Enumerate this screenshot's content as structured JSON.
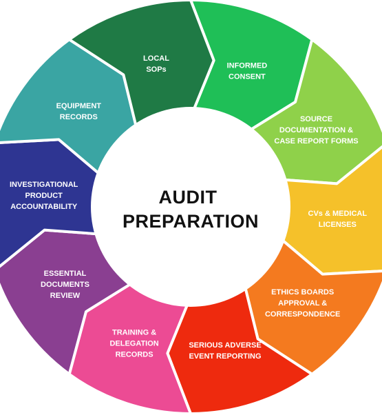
{
  "title": {
    "lines": [
      "AUDIT",
      "PREPARATION"
    ]
  },
  "segments": [
    {
      "id": "informed-consent",
      "lines": [
        "INFORMED",
        "CONSENT"
      ],
      "color": "#1fbf57"
    },
    {
      "id": "source-documentation",
      "lines": [
        "SOURCE",
        "DOCUMENTATION &",
        "CASE REPORT FORMS"
      ],
      "color": "#8fd14a"
    },
    {
      "id": "cvs-medical-licenses",
      "lines": [
        "CVs & MEDICAL",
        "LICENSES"
      ],
      "color": "#f5c12a"
    },
    {
      "id": "ethics-boards",
      "lines": [
        "ETHICS BOARDS",
        "APPROVAL &",
        "CORRESPONDENCE"
      ],
      "color": "#f47a1f"
    },
    {
      "id": "serious-adverse-event",
      "lines": [
        "SERIOUS ADVERSE",
        "EVENT REPORTING"
      ],
      "color": "#ee2a0e"
    },
    {
      "id": "training-delegation",
      "lines": [
        "TRAINING &",
        "DELEGATION",
        "RECORDS"
      ],
      "color": "#ec4b94"
    },
    {
      "id": "essential-documents",
      "lines": [
        "ESSENTIAL",
        "DOCUMENTS",
        "REVIEW"
      ],
      "color": "#8a3f91"
    },
    {
      "id": "investigational-product",
      "lines": [
        "INVESTIGATIONAL",
        "PRODUCT",
        "ACCOUNTABILITY"
      ],
      "color": "#2e3592"
    },
    {
      "id": "equipment-records",
      "lines": [
        "EQUIPMENT",
        "RECORDS"
      ],
      "color": "#3aa5a3"
    },
    {
      "id": "local-sops",
      "lines": [
        "LOCAL",
        "SOPs"
      ],
      "color": "#1f7a45"
    }
  ]
}
